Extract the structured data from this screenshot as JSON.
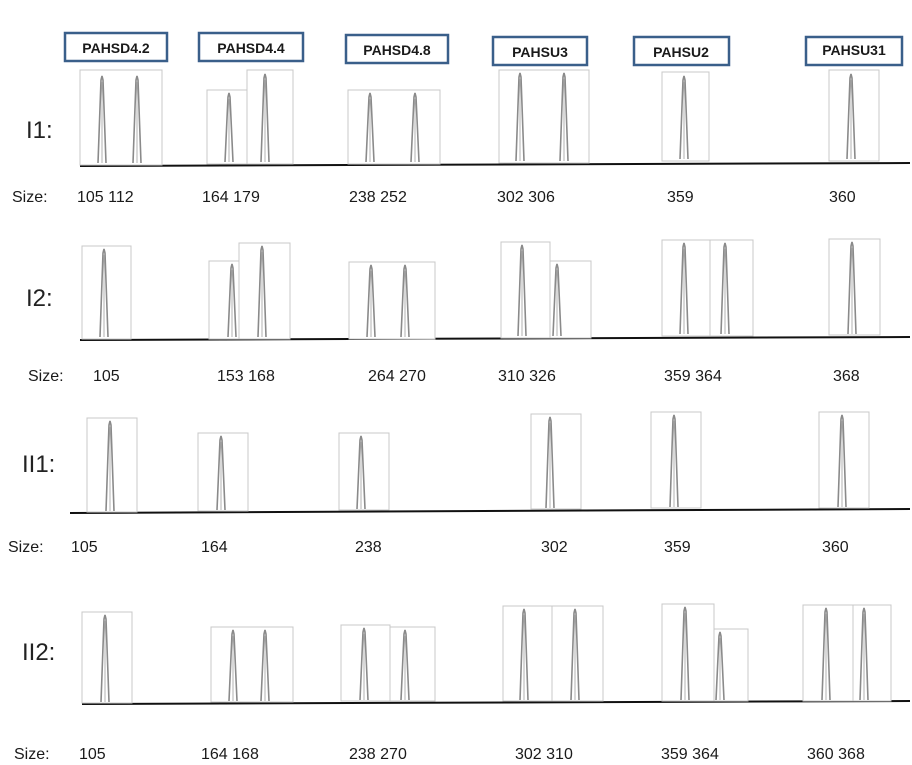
{
  "markers": [
    "PAHSD4.2",
    "PAHSD4.4",
    "PAHSD4.8",
    "PAHSU3",
    "PAHSU2",
    "PAHSU31"
  ],
  "rows": [
    {
      "label": "I1:",
      "size_prefix": "Size:",
      "sizes": [
        "105 112",
        "164 179",
        "238 252",
        "302 306",
        "359",
        "360"
      ]
    },
    {
      "label": "I2:",
      "size_prefix": "Size:",
      "sizes": [
        "105",
        "153 168",
        "264 270",
        "310 326",
        "359 364",
        "368"
      ]
    },
    {
      "label": "II1:",
      "size_prefix": "Size:",
      "sizes": [
        "105",
        "164",
        "238",
        "302",
        "359",
        "360"
      ]
    },
    {
      "label": "II2:",
      "size_prefix": "Size:",
      "sizes": [
        "105",
        "164 168",
        "238 270",
        "302 310",
        "359 364",
        "360 368"
      ]
    }
  ],
  "colors": {
    "marker_border": "#3a5f8a",
    "baseline": "#111111",
    "peak": "#8a8a8a",
    "panel_border": "#c8c8c8"
  }
}
